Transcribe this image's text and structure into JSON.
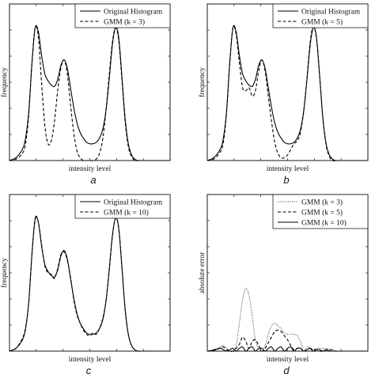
{
  "chart_data": [
    {
      "id": "a",
      "type": "line",
      "caption": "a",
      "xlabel": "intensity level",
      "ylabel": "frequency",
      "xlim": [
        0,
        1
      ],
      "ylim": [
        0,
        1.12
      ],
      "grid": false,
      "legend_position": "top-right",
      "series": [
        {
          "name": "Original Histogram",
          "style": "solid",
          "color": "#000000",
          "x": [
            0,
            0.04,
            0.08,
            0.1,
            0.12,
            0.14,
            0.16,
            0.18,
            0.2,
            0.22,
            0.24,
            0.26,
            0.28,
            0.3,
            0.32,
            0.34,
            0.36,
            0.38,
            0.4,
            0.42,
            0.44,
            0.46,
            0.48,
            0.5,
            0.52,
            0.54,
            0.56,
            0.58,
            0.6,
            0.62,
            0.64,
            0.66,
            0.68,
            0.7,
            0.72,
            0.74,
            0.76,
            0.78,
            0.8,
            0.82,
            0.84,
            0.86,
            0.88,
            0.92,
            0.96,
            1
          ],
          "y": [
            0.0,
            0.02,
            0.08,
            0.16,
            0.35,
            0.7,
            0.95,
            0.92,
            0.75,
            0.62,
            0.57,
            0.54,
            0.53,
            0.58,
            0.68,
            0.72,
            0.66,
            0.52,
            0.38,
            0.27,
            0.2,
            0.16,
            0.13,
            0.12,
            0.12,
            0.13,
            0.16,
            0.22,
            0.35,
            0.57,
            0.82,
            0.95,
            0.88,
            0.6,
            0.3,
            0.12,
            0.04,
            0.01,
            0.0,
            0.0,
            0.0,
            0.0,
            0.0,
            0.0,
            0.0,
            0.0
          ]
        },
        {
          "name": "GMM (k = 3)",
          "style": "dashed",
          "color": "#000000",
          "x": [
            0,
            0.04,
            0.08,
            0.1,
            0.12,
            0.14,
            0.16,
            0.18,
            0.2,
            0.22,
            0.24,
            0.26,
            0.28,
            0.3,
            0.32,
            0.34,
            0.36,
            0.38,
            0.4,
            0.42,
            0.44,
            0.46,
            0.48,
            0.5,
            0.52,
            0.54,
            0.56,
            0.58,
            0.6,
            0.62,
            0.64,
            0.66,
            0.68,
            0.7,
            0.72,
            0.74,
            0.76,
            0.78,
            0.8,
            0.82,
            0.84,
            0.86,
            0.88,
            0.92,
            0.96,
            1
          ],
          "y": [
            0.0,
            0.01,
            0.05,
            0.12,
            0.33,
            0.7,
            0.95,
            0.88,
            0.55,
            0.25,
            0.12,
            0.14,
            0.28,
            0.5,
            0.66,
            0.72,
            0.62,
            0.4,
            0.2,
            0.07,
            0.02,
            0.0,
            0.0,
            0.0,
            0.0,
            0.01,
            0.05,
            0.15,
            0.35,
            0.6,
            0.84,
            0.95,
            0.86,
            0.58,
            0.28,
            0.1,
            0.03,
            0.0,
            0.0,
            0.0,
            0.0,
            0.0,
            0.0,
            0.0,
            0.0,
            0.0
          ]
        }
      ]
    },
    {
      "id": "b",
      "type": "line",
      "caption": "b",
      "xlabel": "intensity level",
      "ylabel": "frequency",
      "xlim": [
        0,
        1
      ],
      "ylim": [
        0,
        1.12
      ],
      "grid": false,
      "legend_position": "top-right",
      "series": [
        {
          "name": "Original Histogram",
          "style": "solid",
          "color": "#000000",
          "x": [
            0,
            0.04,
            0.08,
            0.1,
            0.12,
            0.14,
            0.16,
            0.18,
            0.2,
            0.22,
            0.24,
            0.26,
            0.28,
            0.3,
            0.32,
            0.34,
            0.36,
            0.38,
            0.4,
            0.42,
            0.44,
            0.46,
            0.48,
            0.5,
            0.52,
            0.54,
            0.56,
            0.58,
            0.6,
            0.62,
            0.64,
            0.66,
            0.68,
            0.7,
            0.72,
            0.74,
            0.76,
            0.78,
            0.8,
            0.82,
            0.84,
            0.86,
            0.88,
            0.92,
            0.96,
            1
          ],
          "y": [
            0.0,
            0.02,
            0.08,
            0.16,
            0.35,
            0.7,
            0.95,
            0.92,
            0.75,
            0.62,
            0.57,
            0.54,
            0.53,
            0.58,
            0.68,
            0.72,
            0.66,
            0.52,
            0.38,
            0.27,
            0.2,
            0.16,
            0.13,
            0.12,
            0.12,
            0.13,
            0.16,
            0.22,
            0.35,
            0.57,
            0.82,
            0.95,
            0.88,
            0.6,
            0.3,
            0.12,
            0.04,
            0.01,
            0.0,
            0.0,
            0.0,
            0.0,
            0.0,
            0.0,
            0.0,
            0.0
          ]
        },
        {
          "name": "GMM (k = 5)",
          "style": "dashed",
          "color": "#000000",
          "x": [
            0,
            0.04,
            0.08,
            0.1,
            0.12,
            0.14,
            0.16,
            0.18,
            0.2,
            0.22,
            0.24,
            0.26,
            0.28,
            0.3,
            0.32,
            0.34,
            0.36,
            0.38,
            0.4,
            0.42,
            0.44,
            0.46,
            0.48,
            0.5,
            0.52,
            0.54,
            0.56,
            0.58,
            0.6,
            0.62,
            0.64,
            0.66,
            0.68,
            0.7,
            0.72,
            0.74,
            0.76,
            0.78,
            0.8,
            0.82,
            0.84,
            0.86,
            0.88,
            0.92,
            0.96,
            1
          ],
          "y": [
            0.0,
            0.01,
            0.06,
            0.13,
            0.34,
            0.7,
            0.95,
            0.9,
            0.7,
            0.52,
            0.5,
            0.52,
            0.46,
            0.5,
            0.64,
            0.72,
            0.64,
            0.46,
            0.28,
            0.13,
            0.05,
            0.02,
            0.02,
            0.04,
            0.08,
            0.12,
            0.14,
            0.2,
            0.35,
            0.58,
            0.84,
            0.96,
            0.87,
            0.6,
            0.3,
            0.11,
            0.03,
            0.0,
            0.0,
            0.0,
            0.0,
            0.0,
            0.0,
            0.0,
            0.0,
            0.0
          ]
        }
      ]
    },
    {
      "id": "c",
      "type": "line",
      "caption": "c",
      "xlabel": "intensity level",
      "ylabel": "frequency",
      "xlim": [
        0,
        1
      ],
      "ylim": [
        0,
        1.12
      ],
      "grid": false,
      "legend_position": "top-right",
      "series": [
        {
          "name": "Original Histogram",
          "style": "solid",
          "color": "#000000",
          "x": [
            0,
            0.04,
            0.08,
            0.1,
            0.12,
            0.14,
            0.16,
            0.18,
            0.2,
            0.22,
            0.24,
            0.26,
            0.28,
            0.3,
            0.32,
            0.34,
            0.36,
            0.38,
            0.4,
            0.42,
            0.44,
            0.46,
            0.48,
            0.5,
            0.52,
            0.54,
            0.56,
            0.58,
            0.6,
            0.62,
            0.64,
            0.66,
            0.68,
            0.7,
            0.72,
            0.74,
            0.76,
            0.78,
            0.8,
            0.82,
            0.84,
            0.86,
            0.88,
            0.92,
            0.96,
            1
          ],
          "y": [
            0.0,
            0.02,
            0.08,
            0.16,
            0.35,
            0.7,
            0.95,
            0.92,
            0.75,
            0.62,
            0.57,
            0.54,
            0.53,
            0.58,
            0.68,
            0.72,
            0.66,
            0.52,
            0.38,
            0.27,
            0.2,
            0.16,
            0.13,
            0.12,
            0.12,
            0.13,
            0.16,
            0.22,
            0.35,
            0.57,
            0.82,
            0.95,
            0.88,
            0.6,
            0.3,
            0.12,
            0.04,
            0.01,
            0.0,
            0.0,
            0.0,
            0.0,
            0.0,
            0.0,
            0.0,
            0.0
          ]
        },
        {
          "name": "GMM (k = 10)",
          "style": "dashed",
          "color": "#000000",
          "x": [
            0,
            0.04,
            0.08,
            0.1,
            0.12,
            0.14,
            0.16,
            0.18,
            0.2,
            0.22,
            0.24,
            0.26,
            0.28,
            0.3,
            0.32,
            0.34,
            0.36,
            0.38,
            0.4,
            0.42,
            0.44,
            0.46,
            0.48,
            0.5,
            0.52,
            0.54,
            0.56,
            0.58,
            0.6,
            0.62,
            0.64,
            0.66,
            0.68,
            0.7,
            0.72,
            0.74,
            0.76,
            0.78,
            0.8,
            0.82,
            0.84,
            0.86,
            0.88,
            0.92,
            0.96,
            1
          ],
          "y": [
            0.0,
            0.02,
            0.09,
            0.17,
            0.35,
            0.69,
            0.94,
            0.92,
            0.76,
            0.61,
            0.56,
            0.55,
            0.52,
            0.59,
            0.69,
            0.71,
            0.65,
            0.53,
            0.37,
            0.26,
            0.2,
            0.15,
            0.12,
            0.11,
            0.13,
            0.12,
            0.16,
            0.23,
            0.35,
            0.56,
            0.81,
            0.95,
            0.88,
            0.6,
            0.3,
            0.12,
            0.04,
            0.01,
            0.0,
            0.0,
            0.0,
            0.0,
            0.0,
            0.0,
            0.0,
            0.0
          ]
        }
      ]
    },
    {
      "id": "d",
      "type": "line",
      "caption": "d",
      "xlabel": "intensity level",
      "ylabel": "absolute error",
      "xlim": [
        0,
        1
      ],
      "ylim": [
        0,
        1.12
      ],
      "grid": false,
      "legend_position": "top-right",
      "series": [
        {
          "name": "GMM (k = 3)",
          "style": "dotted",
          "color": "#000000",
          "x": [
            0,
            0.04,
            0.08,
            0.1,
            0.12,
            0.14,
            0.16,
            0.18,
            0.2,
            0.22,
            0.24,
            0.26,
            0.28,
            0.3,
            0.32,
            0.34,
            0.36,
            0.38,
            0.4,
            0.42,
            0.44,
            0.46,
            0.48,
            0.5,
            0.52,
            0.54,
            0.56,
            0.58,
            0.6,
            0.62,
            0.64,
            0.66,
            0.68,
            0.7,
            0.72,
            0.74,
            0.76,
            0.78,
            0.8,
            0.82,
            0.84,
            0.86,
            0.88,
            0.92,
            0.96,
            1
          ],
          "y": [
            0.0,
            0.01,
            0.03,
            0.04,
            0.02,
            0.0,
            0.0,
            0.04,
            0.2,
            0.37,
            0.45,
            0.4,
            0.25,
            0.08,
            0.02,
            0.0,
            0.04,
            0.12,
            0.18,
            0.2,
            0.18,
            0.16,
            0.13,
            0.12,
            0.12,
            0.12,
            0.11,
            0.07,
            0.0,
            0.03,
            0.02,
            0.0,
            0.02,
            0.02,
            0.02,
            0.02,
            0.01,
            0.01,
            0.0,
            0.0,
            0.0,
            0.0,
            0.0,
            0.0,
            0.0,
            0.0
          ]
        },
        {
          "name": "GMM (k = 5)",
          "style": "dashed",
          "color": "#000000",
          "x": [
            0,
            0.04,
            0.08,
            0.1,
            0.12,
            0.14,
            0.16,
            0.18,
            0.2,
            0.22,
            0.24,
            0.26,
            0.28,
            0.3,
            0.32,
            0.34,
            0.36,
            0.38,
            0.4,
            0.42,
            0.44,
            0.46,
            0.48,
            0.5,
            0.52,
            0.54,
            0.56,
            0.58,
            0.6,
            0.62,
            0.64,
            0.66,
            0.68,
            0.7,
            0.72,
            0.74,
            0.76,
            0.78,
            0.8,
            0.82,
            0.84,
            0.86,
            0.88,
            0.92,
            0.96,
            1
          ],
          "y": [
            0.0,
            0.01,
            0.02,
            0.03,
            0.01,
            0.0,
            0.0,
            0.02,
            0.05,
            0.1,
            0.07,
            0.02,
            0.07,
            0.08,
            0.04,
            0.0,
            0.02,
            0.06,
            0.1,
            0.14,
            0.15,
            0.14,
            0.11,
            0.08,
            0.04,
            0.01,
            0.02,
            0.02,
            0.0,
            0.01,
            0.02,
            0.01,
            0.01,
            0.0,
            0.0,
            0.01,
            0.01,
            0.01,
            0.0,
            0.0,
            0.0,
            0.0,
            0.0,
            0.0,
            0.0,
            0.0
          ]
        },
        {
          "name": "GMM (k = 10)",
          "style": "solid",
          "color": "#000000",
          "x": [
            0,
            0.04,
            0.08,
            0.1,
            0.12,
            0.14,
            0.16,
            0.18,
            0.2,
            0.22,
            0.24,
            0.26,
            0.28,
            0.3,
            0.32,
            0.34,
            0.36,
            0.38,
            0.4,
            0.42,
            0.44,
            0.46,
            0.48,
            0.5,
            0.52,
            0.54,
            0.56,
            0.58,
            0.6,
            0.62,
            0.64,
            0.66,
            0.68,
            0.7,
            0.72,
            0.74,
            0.76,
            0.78,
            0.8,
            0.82,
            0.84,
            0.86,
            0.88,
            0.92,
            0.96,
            1
          ],
          "y": [
            0.0,
            0.005,
            0.02,
            0.01,
            0.0,
            0.01,
            0.02,
            0.0,
            0.02,
            0.03,
            0.0,
            0.02,
            0.03,
            0.0,
            0.02,
            0.02,
            0.0,
            0.02,
            0.03,
            0.0,
            0.02,
            0.03,
            0.0,
            0.02,
            0.03,
            0.0,
            0.02,
            0.02,
            0.0,
            0.01,
            0.02,
            0.0,
            0.01,
            0.01,
            0.0,
            0.01,
            0.0,
            0.0,
            0.0,
            0.0,
            0.0,
            0.0,
            0.0,
            0.0,
            0.0,
            0.0
          ]
        }
      ]
    }
  ]
}
